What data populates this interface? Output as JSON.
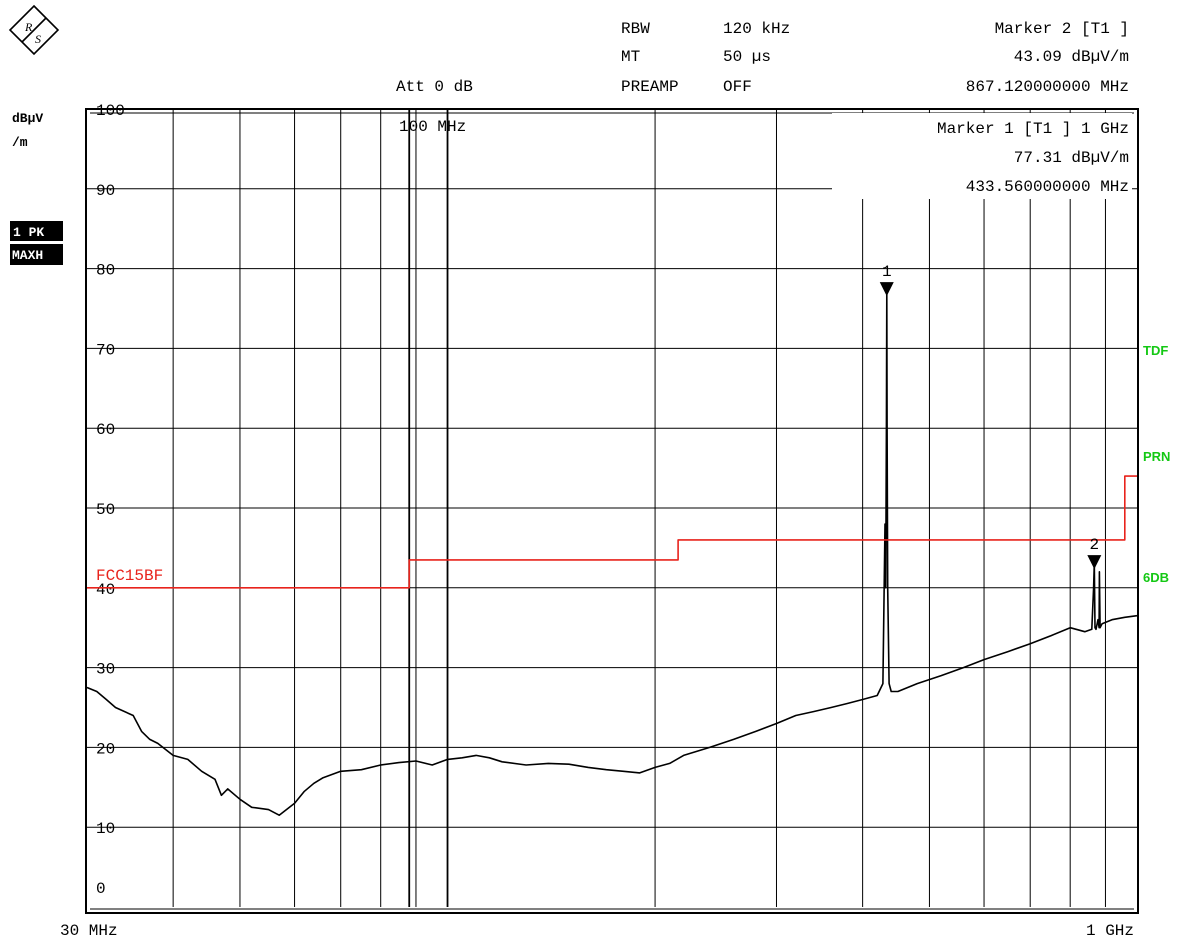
{
  "header": {
    "rbw_label": "RBW",
    "rbw_value": "120 kHz",
    "mt_label": "MT",
    "mt_value": "50 µs",
    "att": "Att 0 dB",
    "preamp_label": "PREAMP",
    "preamp_value": "OFF",
    "marker2_title": "Marker 2 [T1 ]",
    "marker2_level": "43.09 dBµV/m",
    "marker2_freq": "867.120000000 MHz"
  },
  "left_panel": {
    "unit_line1": "dBµV",
    "unit_line2": "/m",
    "trace_badge_line1": "1 PK",
    "trace_badge_line2": "MAXH"
  },
  "right_panel": {
    "labels": [
      "TDF",
      "PRN",
      "6DB"
    ],
    "label_color": "#14c814"
  },
  "plot": {
    "marker1_title": "Marker 1 [T1 ] 1 GHz",
    "marker1_level": "77.31 dBµV/m",
    "marker1_freq": "433.560000000 MHz",
    "freq_100_label": "100 MHz",
    "limit_label": "FCC15BF",
    "marker1_tag": "1",
    "marker2_tag": "2",
    "x_start_label": "30 MHz",
    "x_stop_label": "1 GHz"
  },
  "chart_data": {
    "type": "line",
    "xscale": "log",
    "xlim_mhz": [
      30,
      1000
    ],
    "ylim": [
      0,
      100
    ],
    "ylabel": "dBµV /m",
    "yticks": [
      0,
      10,
      20,
      30,
      40,
      50,
      60,
      70,
      80,
      90,
      100
    ],
    "ytick_labels": [
      "0",
      "10",
      "20",
      "30",
      "40",
      "50",
      "60",
      "70",
      "80",
      "90",
      "100"
    ],
    "grid": true,
    "colors": {
      "trace": "#000000",
      "limit": "#e8231c",
      "grid": "#000000"
    },
    "series": [
      {
        "name": "1 PK MAXH",
        "x_mhz": [
          30,
          31,
          32,
          33,
          35,
          36,
          37,
          38,
          40,
          42,
          44,
          46,
          47,
          48,
          50,
          52,
          55,
          57,
          60,
          62,
          64,
          66,
          70,
          75,
          80,
          85,
          90,
          95,
          100,
          105,
          110,
          115,
          120,
          130,
          140,
          150,
          160,
          170,
          180,
          190,
          200,
          210,
          220,
          240,
          260,
          280,
          300,
          320,
          340,
          360,
          380,
          400,
          420,
          428,
          431,
          432,
          433,
          433.56,
          434,
          435,
          437,
          440,
          450,
          480,
          520,
          560,
          600,
          650,
          700,
          750,
          800,
          840,
          860,
          865,
          867.12,
          869,
          872,
          878,
          881,
          882,
          884,
          890,
          920,
          960,
          1000
        ],
        "y": [
          27.5,
          27,
          26,
          25,
          24,
          22,
          21,
          20.5,
          19,
          18.5,
          17,
          16,
          14,
          14.8,
          13.5,
          12.5,
          12.2,
          11.5,
          13,
          14.5,
          15.5,
          16.2,
          17,
          17.2,
          17.8,
          18.1,
          18.3,
          17.8,
          18.5,
          18.7,
          19,
          18.7,
          18.2,
          17.8,
          18,
          17.9,
          17.5,
          17.2,
          17,
          16.8,
          17.5,
          18,
          19,
          20,
          21,
          22,
          23,
          24,
          24.5,
          25,
          25.5,
          26,
          26.5,
          28,
          48,
          40,
          60,
          77.31,
          60,
          40,
          28,
          27,
          27,
          28,
          29,
          30,
          31,
          32,
          33,
          34,
          35,
          34.5,
          34.8,
          40,
          43.09,
          35,
          34.8,
          36,
          35,
          42,
          35,
          35.5,
          36,
          36.3,
          36.5
        ]
      },
      {
        "name": "FCC15BF",
        "x_mhz": [
          30,
          88,
          88,
          216,
          216,
          960,
          960,
          1000
        ],
        "y": [
          40,
          40,
          43.5,
          43.5,
          46,
          46,
          54,
          54
        ]
      }
    ],
    "markers": [
      {
        "label": "1",
        "x_mhz": 433.56,
        "y": 77.31
      },
      {
        "label": "2",
        "x_mhz": 867.12,
        "y": 43.09
      }
    ],
    "vertical_lines_mhz": [
      88,
      100
    ]
  }
}
